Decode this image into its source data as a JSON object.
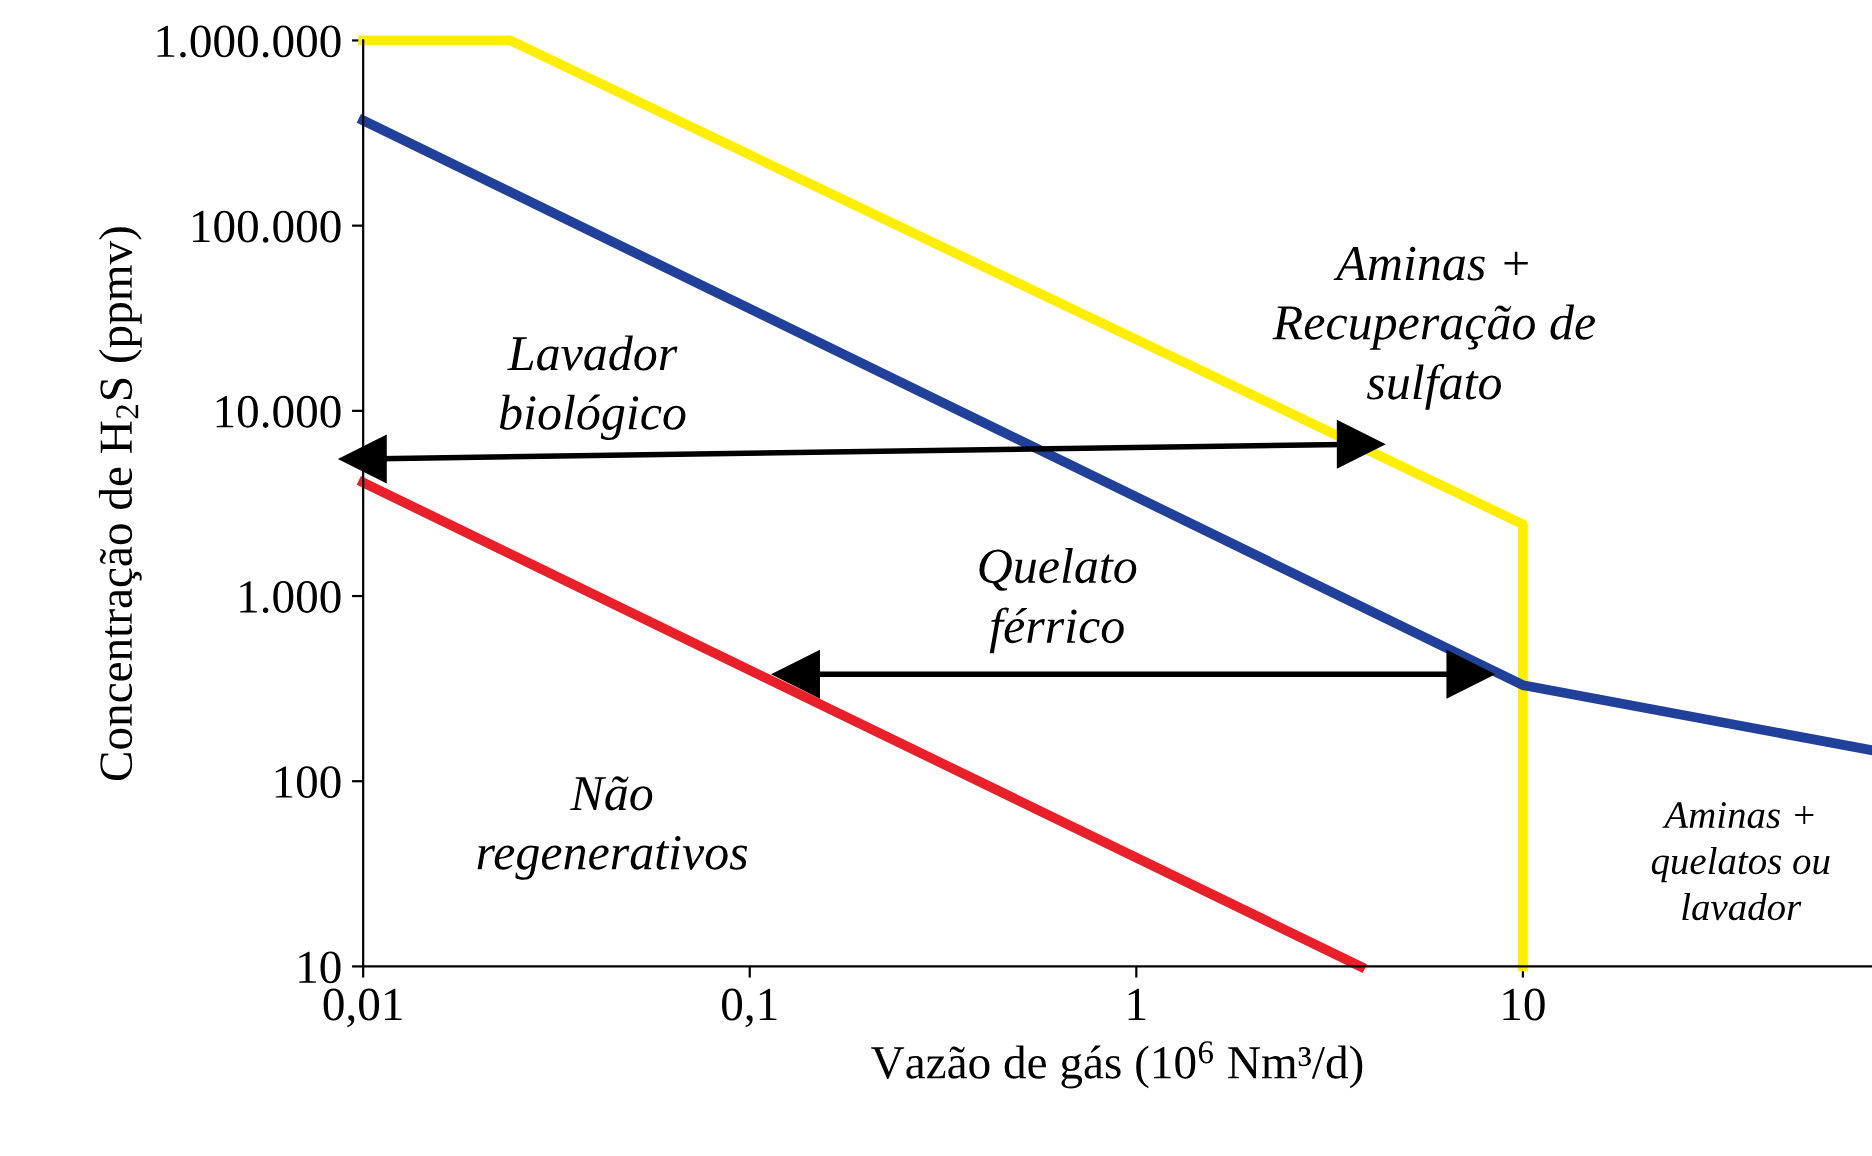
{
  "chart_data": {
    "type": "line",
    "xlabel": "Vazão de gás (10$^{6}$ Nm³/d)",
    "ylabel": "Concentração de H$_{2}$S (ppmv)",
    "log": "xy",
    "grid": false,
    "marker": "none",
    "line_style": "solid",
    "xlim": [
      0.01,
      80
    ],
    "xticks": [
      {
        "value": 0.01,
        "label": "0,01"
      },
      {
        "value": 0.1,
        "label": "0,1"
      },
      1,
      10
    ],
    "ylim": [
      10,
      1000000
    ],
    "yticks": [
      10,
      100,
      {
        "value": 1000,
        "label": "1.000"
      },
      {
        "value": 10000,
        "label": "10.000"
      },
      {
        "value": 100000,
        "label": "100.000"
      },
      {
        "value": 1000000,
        "label": "1.000.000"
      }
    ],
    "series": [
      {
        "color": "#ffee00",
        "x": [
          0.01,
          0.024,
          10,
          10
        ],
        "values": [
          1000000,
          1000000,
          2440,
          10
        ]
      },
      {
        "color": "#21409a",
        "x": [
          0.01,
          10,
          80
        ],
        "values": [
          370000,
          330,
          147
        ]
      },
      {
        "color": "#e8202a",
        "x": [
          0.01,
          3.8
        ],
        "values": [
          4100,
          10
        ]
      },
      {
        "color": "#000000",
        "marker": "triangle",
        "x": [
          0.01,
          3.8
        ],
        "values": [
          5500,
          6600
        ]
      },
      {
        "color": "#000000",
        "marker": "triangle",
        "x": [
          0.132,
          7.3
        ],
        "values": [
          378,
          378
        ]
      }
    ],
    "annotations": [
      "Aminas +\nRecuperação de\nsulfato",
      "Lavador\nbiológico",
      "Quelato\nférrico",
      "Não\nregenerativos",
      "Aminas +\nquelatos ou\nlavador"
    ]
  }
}
